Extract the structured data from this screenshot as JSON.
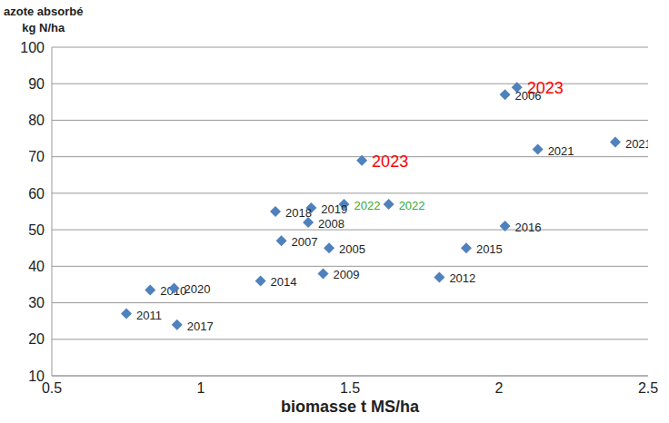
{
  "chart_data": {
    "type": "scatter",
    "xlabel": "biomasse t MS/ha",
    "ylabel": "azote absorbé\nkg N/ha",
    "x": [
      2.06,
      2.02,
      2.13,
      2.39,
      1.54,
      1.48,
      1.63,
      1.37,
      1.25,
      1.36,
      2.02,
      1.27,
      1.43,
      1.89,
      1.41,
      1.8,
      1.2,
      0.83,
      0.91,
      0.75,
      0.92
    ],
    "values": [
      89,
      87,
      72,
      74,
      69,
      57,
      57,
      56,
      55,
      52,
      51,
      47,
      45,
      45,
      38,
      37,
      36,
      33.5,
      34,
      27,
      24
    ],
    "labels": [
      "2023",
      "2006",
      "2021",
      "2021",
      "2023",
      "2022",
      "2022",
      "2019",
      "2018",
      "2008",
      "2016",
      "2007",
      "2005",
      "2015",
      "2009",
      "2012",
      "2014",
      "2010",
      "2020",
      "2011",
      "2017"
    ],
    "label_colors": [
      "#ff0000",
      "#222222",
      "#222222",
      "#222222",
      "#ff0000",
      "#33aa33",
      "#33aa33",
      "#222222",
      "#222222",
      "#222222",
      "#222222",
      "#222222",
      "#222222",
      "#222222",
      "#222222",
      "#222222",
      "#222222",
      "#222222",
      "#222222",
      "#222222",
      "#222222"
    ],
    "color": "#4f81bd",
    "marker": "diamond",
    "xlim": [
      0.5,
      2.5
    ],
    "xticks": [
      0.5,
      1,
      1.5,
      2,
      2.5
    ],
    "ylim": [
      10,
      100
    ],
    "yticks": [
      10,
      20,
      30,
      40,
      50,
      60,
      70,
      80,
      90,
      100
    ],
    "grid": true
  }
}
